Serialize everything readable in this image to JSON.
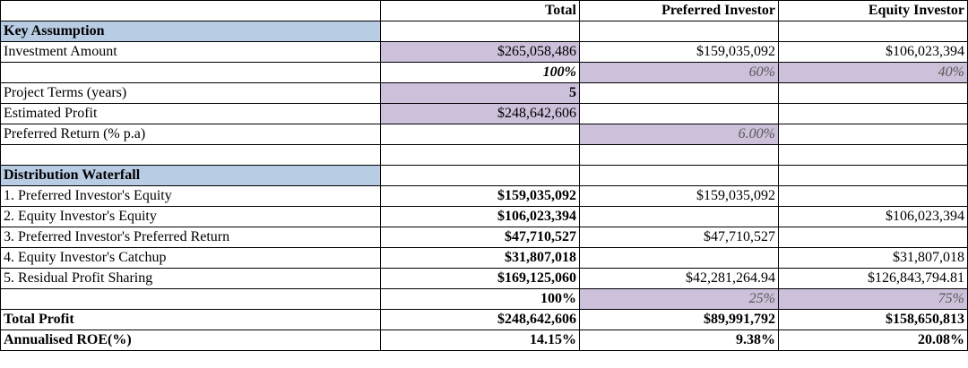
{
  "columns": [
    "",
    "Total",
    "Preferred Investor",
    "Equity Investor"
  ],
  "key_assumption": {
    "title": "Key Assumption",
    "investment": {
      "label": "Investment Amount",
      "total": "$265,058,486",
      "preferred": "$159,035,092",
      "equity": "$106,023,394"
    },
    "shares": {
      "total": "100%",
      "preferred": "60%",
      "equity": "40%"
    },
    "terms": {
      "label": "Project Terms (years)",
      "total": "5"
    },
    "profit": {
      "label": "Estimated Profit",
      "total": "$248,642,606"
    },
    "pref_return": {
      "label": "Preferred Return (% p.a)",
      "preferred": "6.00%"
    }
  },
  "waterfall": {
    "title": "Distribution Waterfall",
    "rows": [
      {
        "label": "1. Preferred Investor's Equity",
        "total": "$159,035,092",
        "preferred": "$159,035,092",
        "equity": ""
      },
      {
        "label": "2. Equity Investor's Equity",
        "total": "$106,023,394",
        "preferred": "",
        "equity": "$106,023,394"
      },
      {
        "label": "3. Preferred Investor's Preferred Return",
        "total": "$47,710,527",
        "preferred": "$47,710,527",
        "equity": ""
      },
      {
        "label": "4. Equity Investor's Catchup",
        "total": "$31,807,018",
        "preferred": "",
        "equity": "$31,807,018"
      },
      {
        "label": "5. Residual Profit Sharing",
        "total": "$169,125,060",
        "preferred": "$42,281,264.94",
        "equity": "$126,843,794.81"
      }
    ],
    "split": {
      "total": "100%",
      "preferred": "25%",
      "equity": "75%"
    }
  },
  "totals": {
    "profit": {
      "label": "Total Profit",
      "total": "$248,642,606",
      "preferred": "$89,991,792",
      "equity": "$158,650,813"
    },
    "roe": {
      "label": "Annualised ROE(%)",
      "total": "14.15%",
      "preferred": "9.38%",
      "equity": "20.08%"
    }
  }
}
